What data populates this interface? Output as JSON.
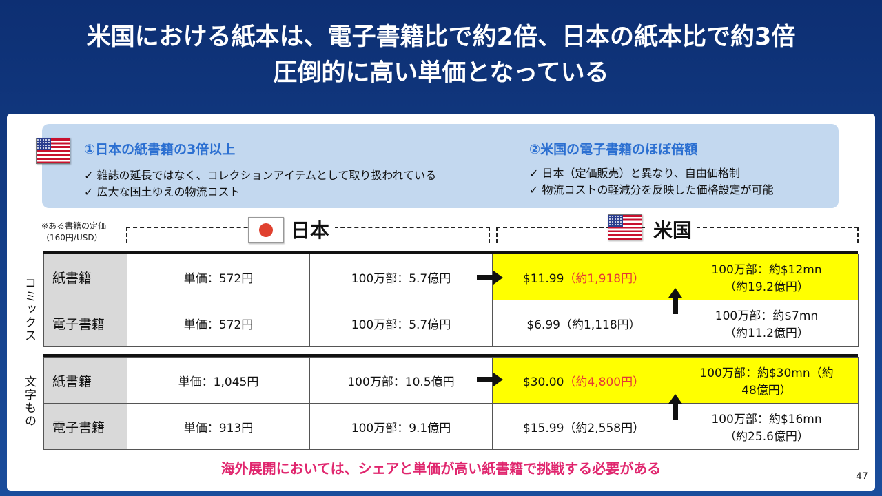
{
  "title": {
    "line1": "米国における紙本は、電子書籍比で約2倍、日本の紙本比で約3倍",
    "line2": "圧倒的に高い単価となっている"
  },
  "info": {
    "left": {
      "heading": "①日本の紙書籍の3倍以上",
      "items": [
        "✓ 雑誌の延長ではなく、コレクションアイテムとして取り扱われている",
        "✓ 広大な国土ゆえの物流コスト"
      ]
    },
    "right": {
      "heading": "②米国の電子書籍のほぼ倍額",
      "items": [
        "✓ 日本（定価販売）と異なり、自由価格制",
        "✓ 物流コストの軽減分を反映した価格設定が可能"
      ]
    }
  },
  "note": {
    "line1": "※ある書籍の定価",
    "line2": "（160円/USD）"
  },
  "regions": {
    "japan": "日本",
    "us": "米国"
  },
  "groups": {
    "comics": "コミックス",
    "text": "文字もの"
  },
  "table": {
    "comics": [
      {
        "type": "紙書籍",
        "jp_price": "単価：572円",
        "jp_total": "100万部：5.7億円",
        "us_price": "$11.99",
        "us_price_yen": "（約1,918円）",
        "us_total_1": "100万部：約$12mn",
        "us_total_2": "（約19.2億円）"
      },
      {
        "type": "電子書籍",
        "jp_price": "単価：572円",
        "jp_total": "100万部：5.7億円",
        "us_price": "$6.99（約1,118円）",
        "us_total_1": "100万部：約$7mn",
        "us_total_2": "（約11.2億円）"
      }
    ],
    "text": [
      {
        "type": "紙書籍",
        "jp_price": "単価：1,045円",
        "jp_total": "100万部：10.5億円",
        "us_price": "$30.00",
        "us_price_yen": "（約4,800円）",
        "us_total_1": "100万部：約$30mn（約",
        "us_total_2": "48億円）"
      },
      {
        "type": "電子書籍",
        "jp_price": "単価：913円",
        "jp_total": "100万部：9.1億円",
        "us_price": "$15.99（約2,558円）",
        "us_total_1": "100万部：約$16mn",
        "us_total_2": "（約25.6億円）"
      }
    ]
  },
  "footer": "海外展開においては、シェアと単価が高い紙書籍で挑戦する必要がある",
  "page_number": "47",
  "colors": {
    "highlight": "#ffff00",
    "heading_blue": "#2b6fd1",
    "footer_pink": "#e0266e",
    "price_red": "#e53935"
  },
  "icons": [
    "us-flag-icon",
    "japan-flag-icon",
    "arrow-right-icon",
    "arrow-up-icon"
  ]
}
